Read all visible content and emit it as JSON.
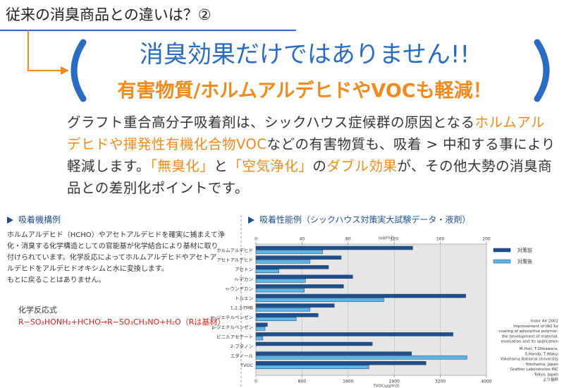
{
  "header": {
    "title": "従来の消臭商品との違いは？②"
  },
  "headline": {
    "main": "消臭効果だけではありません!!",
    "sub": "有害物質/ホルムアルデヒドやVOCも軽減！"
  },
  "paragraph": {
    "segments": [
      {
        "text": "グラフト重合高分子吸着剤は、シックハウス症候群の原因となる",
        "highlight": false
      },
      {
        "text": "ホルムアルデヒドや揮発性有機化合物VOC",
        "highlight": true
      },
      {
        "text": "などの有害物質も、吸着 > 中和する事により軽減します。",
        "highlight": false
      },
      {
        "text": "「無臭化」",
        "highlight": true
      },
      {
        "text": "と",
        "highlight": false
      },
      {
        "text": "「空気浄化」",
        "highlight": true
      },
      {
        "text": "の",
        "highlight": false
      },
      {
        "text": "ダブル効果",
        "highlight": true
      },
      {
        "text": "が、その他大勢の消臭商品との差別化ポイントです。",
        "highlight": false
      }
    ]
  },
  "mechanism": {
    "title": "吸着機構例",
    "lines": [
      "ホルムアルデヒド（HCHO）やアセトアルデヒドを確実に捕まえて浄",
      "化・消臭する化学構造としての官能基が化学結合により基材に取り",
      "付けられています。化学反応によってホルムアルデヒドやアセトア",
      "ルデヒドをアルデヒドオキシムと水に変換します。",
      "もとに戻ることはありません。"
    ],
    "formula_label": "化学反応式",
    "formula": "R−SO₃HONH₂+HCHO→R−SO₃CH₃NO+H₂O（Rは基材）"
  },
  "chart_data": [
    {
      "type": "hbar",
      "title": "吸着性能例（シックハウス対策実大試験データ・液剤）",
      "xlabel": "(μg/m3)",
      "categories": [
        "ホルムアルデヒド",
        "アセトアルデヒド",
        "アセトン",
        "n-デカン",
        "n-ウンデカン",
        "トルエン",
        "1,2,3-TMB",
        "m-ジエチルベンゼン",
        "p-ジエチルベンゼン",
        "ビニルアセテート",
        "2-ブタノン",
        "エタノール"
      ],
      "series": [
        {
          "name": "対策前",
          "color": "#1f4e8c",
          "values": [
            136,
            74,
            63,
            84,
            76,
            182,
            68,
            54,
            10,
            171,
            101,
            135
          ]
        },
        {
          "name": "対策後",
          "color": "#5cb6e6",
          "values": [
            58,
            47,
            20,
            43,
            42,
            111,
            47,
            35,
            8,
            6,
            0,
            183
          ]
        }
      ],
      "xlim": [
        0,
        200
      ],
      "xticks": [
        0,
        40,
        80,
        120,
        160,
        200
      ],
      "grid": true
    },
    {
      "type": "hbar",
      "xlabel": "TVOC(μg/m3)",
      "categories": [
        "TVOC"
      ],
      "series": [
        {
          "color": "#1f4e8c",
          "values": [
            2950
          ]
        },
        {
          "color": "#5cb6e6",
          "values": [
            1960
          ]
        }
      ],
      "xlim": [
        0,
        4000
      ],
      "xticks": [
        0,
        800,
        1600,
        2400,
        3200,
        4000
      ],
      "grid": false
    }
  ],
  "citation": [
    "Indor Air 2002",
    "Improvement of IAQ by",
    "coating of adsorptive polymer:",
    "the development of material,",
    "evaluation and its application",
    "M.Hori, T.Ohkawara,",
    "S.Handa, T.Wakui",
    "Yokohama National University",
    ": Yokohama, Japan",
    "Grafton Laboratories INC",
    ": Tokyo, Japan",
    "より抜粋"
  ]
}
